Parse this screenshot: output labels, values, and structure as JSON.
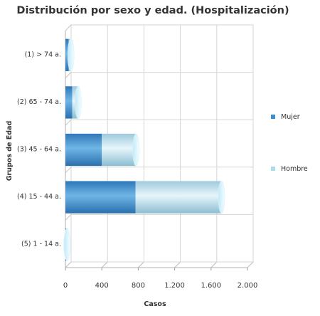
{
  "chart_data": {
    "type": "bar",
    "orientation": "horizontal",
    "stacked": true,
    "title": "Distribución por sexo y edad. (Hospitalización)",
    "xlabel": "Casos",
    "ylabel": "Grupos de Edad",
    "xlim": [
      0,
      2000
    ],
    "xticks": [
      0,
      400,
      800,
      1200,
      1600,
      2000
    ],
    "xtick_labels": [
      "0",
      "400",
      "800",
      "1.200",
      "1.600",
      "2.000"
    ],
    "categories": [
      "(1) > 74 a.",
      "(2) 65 - 74 a.",
      "(3) 45 - 64 a.",
      "(4) 15 - 44 a.",
      "(5) 1 - 14 a."
    ],
    "series": [
      {
        "name": "Mujer",
        "values": [
          35,
          75,
          400,
          770,
          10
        ],
        "color": "#3a8fd0"
      },
      {
        "name": "Hombre",
        "values": [
          25,
          65,
          375,
          945,
          8
        ],
        "color": "#a9dcef"
      }
    ],
    "legend_position": "right",
    "grid": true
  }
}
